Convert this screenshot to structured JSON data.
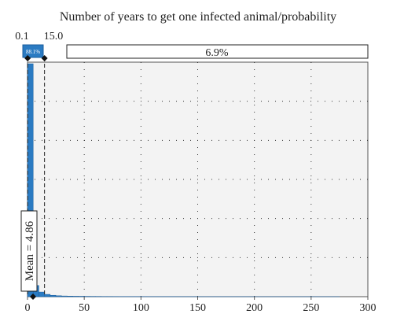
{
  "chart_data": {
    "type": "bar",
    "title": "Number of years to get one infected animal/probability",
    "xlabel": "",
    "ylabel": "",
    "xlim": [
      0,
      300
    ],
    "x_ticks": [
      0,
      50,
      100,
      150,
      200,
      250,
      300
    ],
    "x_tick_labels": [
      "0",
      "50",
      "100",
      "150",
      "200",
      "250",
      "300"
    ],
    "grid": true,
    "histogram": {
      "bin_width": 5,
      "bin_starts": [
        0,
        5,
        10,
        15,
        20,
        25,
        30,
        35,
        40,
        45,
        50,
        55,
        60,
        65,
        70,
        75,
        80,
        85,
        90,
        95,
        100,
        105,
        110,
        115,
        120,
        125,
        130,
        135,
        140,
        145,
        150,
        155,
        160,
        165,
        170,
        175,
        180,
        185,
        190,
        195,
        200,
        205,
        210,
        215,
        220,
        225,
        230,
        235,
        240,
        245,
        250,
        255,
        260,
        265,
        270
      ],
      "relative_heights": [
        1.0,
        0.048,
        0.02,
        0.01,
        0.006,
        0.004,
        0.003,
        0.0025,
        0.002,
        0.0018,
        0.0015,
        0.0013,
        0.0012,
        0.001,
        0.001,
        0.0009,
        0.0008,
        0.0008,
        0.0007,
        0.0007,
        0.0006,
        0.0006,
        0.0005,
        0.0005,
        0.0005,
        0.0005,
        0.0004,
        0.0004,
        0.0004,
        0.0004,
        0.0004,
        0.0003,
        0.0003,
        0.0003,
        0.0003,
        0.0003,
        0.0003,
        0.0003,
        0.0003,
        0.0002,
        0.0002,
        0.0002,
        0.0002,
        0.0002,
        0.0002,
        0.0002,
        0.0002,
        0.0002,
        0.0002,
        0.0002,
        0.0002,
        0.0002,
        0.0002,
        0.0002,
        0.0002
      ]
    },
    "delimiters": [
      {
        "label": "0.1",
        "value": 0.1
      },
      {
        "label": "15.0",
        "value": 15.0
      }
    ],
    "probability_segments": [
      {
        "label": "88.1%",
        "from": 0.1,
        "to": 15.0
      },
      {
        "label": "6.9%",
        "from": 15.0,
        "to": 300
      }
    ],
    "mean": {
      "value": 4.86,
      "label": "Mean = 4.86"
    },
    "colors": {
      "bar": "#2b7bc2",
      "bar_edge": "#1a5e9e",
      "plot_bg": "#f3f3f3",
      "grid": "#333333",
      "segment_fill": "#2b7bc2"
    }
  }
}
